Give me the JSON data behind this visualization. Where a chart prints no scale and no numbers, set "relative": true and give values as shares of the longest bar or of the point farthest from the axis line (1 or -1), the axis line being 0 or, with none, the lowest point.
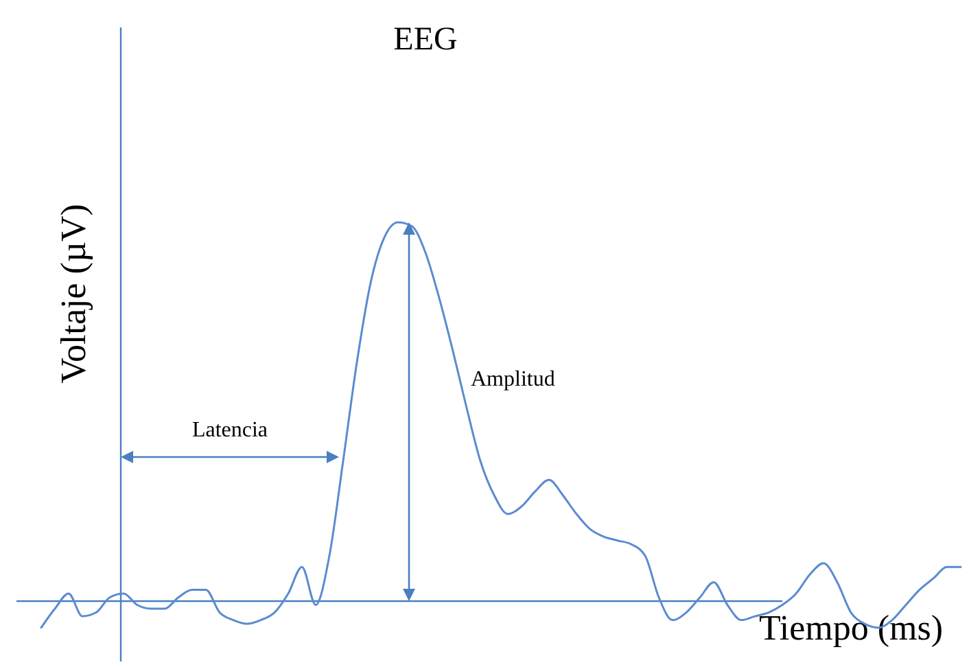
{
  "chart_data": {
    "type": "line",
    "title": "EEG",
    "xlabel": "Tiempo (ms)",
    "ylabel": "Voltaje (µV)",
    "relative": true,
    "annotations": [
      "Latencia",
      "Amplitud"
    ],
    "categories": [
      null,
      null,
      null,
      null,
      null,
      null,
      null,
      null,
      null,
      null,
      null,
      null,
      null,
      null,
      null,
      null,
      null,
      null,
      null,
      null,
      null,
      null,
      null,
      null,
      null,
      null,
      null,
      null,
      null,
      null,
      null,
      null,
      null,
      null,
      null,
      null,
      null,
      null,
      null,
      null,
      null,
      null,
      null,
      null,
      null,
      null,
      null,
      null,
      null,
      null,
      null,
      null,
      null,
      null,
      null,
      null,
      null,
      null,
      null,
      null,
      null,
      null,
      null,
      null,
      null,
      null,
      null,
      null
    ],
    "series": [
      {
        "color": "#5b8bd0",
        "values": [
          -0.07,
          -0.02,
          0.02,
          -0.04,
          -0.03,
          0.01,
          0.02,
          -0.01,
          -0.02,
          -0.02,
          0.01,
          0.03,
          0.03,
          -0.03,
          -0.05,
          -0.06,
          -0.05,
          -0.03,
          0.02,
          0.09,
          -0.01,
          0.12,
          0.37,
          0.63,
          0.84,
          0.96,
          1,
          0.99,
          0.92,
          0.8,
          0.66,
          0.51,
          0.37,
          0.28,
          0.23,
          0.25,
          0.29,
          0.32,
          0.28,
          0.23,
          0.19,
          0.17,
          0.16,
          0.15,
          0.12,
          0.01,
          -0.05,
          -0.03,
          0.01,
          0.05,
          -0.01,
          -0.05,
          -0.04,
          -0.03,
          -0.01,
          0.02,
          0.07,
          0.1,
          0.05,
          -0.03,
          -0.06,
          -0.07,
          -0.05,
          -0.01,
          0.03,
          0.06,
          0.09,
          0.09
        ]
      }
    ]
  }
}
